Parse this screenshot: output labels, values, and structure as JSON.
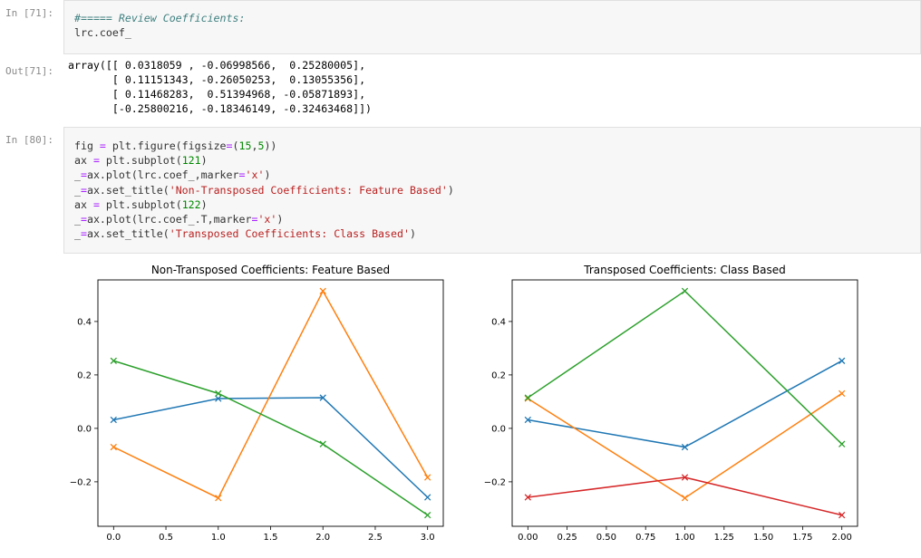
{
  "cells": [
    {
      "in_prompt": "In [71]:",
      "code_lines": [
        [
          {
            "t": "#===== Review Coefficients:",
            "c": "comment"
          }
        ],
        [
          {
            "t": "lrc.coef_",
            "c": ""
          }
        ]
      ],
      "out_prompt": "Out[71]:",
      "output_lines": [
        "array([[ 0.0318059 , -0.06998566,  0.25280005],",
        "       [ 0.11151343, -0.26050253,  0.13055356],",
        "       [ 0.11468283,  0.51394968, -0.05871893],",
        "       [-0.25800216, -0.18346149, -0.32463468]])"
      ]
    },
    {
      "in_prompt": "In [80]:",
      "code_lines": [
        [
          {
            "t": "fig ",
            "c": ""
          },
          {
            "t": "=",
            "c": "op"
          },
          {
            "t": " plt.figure(figsize",
            "c": ""
          },
          {
            "t": "=",
            "c": "op"
          },
          {
            "t": "(",
            "c": ""
          },
          {
            "t": "15",
            "c": "num"
          },
          {
            "t": ",",
            "c": ""
          },
          {
            "t": "5",
            "c": "num"
          },
          {
            "t": "))",
            "c": ""
          }
        ],
        [
          {
            "t": "ax ",
            "c": ""
          },
          {
            "t": "=",
            "c": "op"
          },
          {
            "t": " plt.subplot(",
            "c": ""
          },
          {
            "t": "121",
            "c": "num"
          },
          {
            "t": ")",
            "c": ""
          }
        ],
        [
          {
            "t": "_",
            "c": ""
          },
          {
            "t": "=",
            "c": "op"
          },
          {
            "t": "ax.plot(lrc.coef_,marker",
            "c": ""
          },
          {
            "t": "=",
            "c": "op"
          },
          {
            "t": "'x'",
            "c": "str"
          },
          {
            "t": ")",
            "c": ""
          }
        ],
        [
          {
            "t": "_",
            "c": ""
          },
          {
            "t": "=",
            "c": "op"
          },
          {
            "t": "ax.set_title(",
            "c": ""
          },
          {
            "t": "'Non-Transposed Coefficients: Feature Based'",
            "c": "str"
          },
          {
            "t": ")",
            "c": ""
          }
        ],
        [
          {
            "t": "ax ",
            "c": ""
          },
          {
            "t": "=",
            "c": "op"
          },
          {
            "t": " plt.subplot(",
            "c": ""
          },
          {
            "t": "122",
            "c": "num"
          },
          {
            "t": ")",
            "c": ""
          }
        ],
        [
          {
            "t": "_",
            "c": ""
          },
          {
            "t": "=",
            "c": "op"
          },
          {
            "t": "ax.plot(lrc.coef_.T,marker",
            "c": ""
          },
          {
            "t": "=",
            "c": "op"
          },
          {
            "t": "'x'",
            "c": "str"
          },
          {
            "t": ")",
            "c": ""
          }
        ],
        [
          {
            "t": "_",
            "c": ""
          },
          {
            "t": "=",
            "c": "op"
          },
          {
            "t": "ax.set_title(",
            "c": ""
          },
          {
            "t": "'Transposed Coefficients: Class Based'",
            "c": "str"
          },
          {
            "t": ")",
            "c": ""
          }
        ]
      ]
    }
  ],
  "colors": [
    "#1f77b4",
    "#ff7f0e",
    "#2ca02c",
    "#d62728"
  ],
  "chart_data": [
    {
      "type": "line",
      "title": "Non-Transposed Coefficients: Feature Based",
      "x": [
        0,
        1,
        2,
        3
      ],
      "series": [
        {
          "values": [
            0.0318059,
            0.11151343,
            0.11468283,
            -0.25800216
          ]
        },
        {
          "values": [
            -0.06998566,
            -0.26050253,
            0.51394968,
            -0.18346149
          ]
        },
        {
          "values": [
            0.25280005,
            0.13055356,
            -0.05871893,
            -0.32463468
          ]
        }
      ],
      "xlim": [
        -0.15,
        3.15
      ],
      "ylim": [
        -0.3665,
        0.5556
      ],
      "xticks": [
        0.0,
        0.5,
        1.0,
        1.5,
        2.0,
        2.5,
        3.0
      ],
      "xtick_labels": [
        "0.0",
        "0.5",
        "1.0",
        "1.5",
        "2.0",
        "2.5",
        "3.0"
      ],
      "yticks": [
        -0.2,
        0.0,
        0.2,
        0.4
      ],
      "ytick_labels": [
        "−0.2",
        "0.0",
        "0.2",
        "0.4"
      ],
      "marker": "x",
      "grid": false
    },
    {
      "type": "line",
      "title": "Transposed Coefficients: Class Based",
      "x": [
        0,
        1,
        2
      ],
      "series": [
        {
          "values": [
            0.0318059,
            -0.06998566,
            0.25280005
          ]
        },
        {
          "values": [
            0.11151343,
            -0.26050253,
            0.13055356
          ]
        },
        {
          "values": [
            0.11468283,
            0.51394968,
            -0.05871893
          ]
        },
        {
          "values": [
            -0.25800216,
            -0.18346149,
            -0.32463468
          ]
        }
      ],
      "xlim": [
        -0.1,
        2.1
      ],
      "ylim": [
        -0.3665,
        0.5556
      ],
      "xticks": [
        0.0,
        0.25,
        0.5,
        0.75,
        1.0,
        1.25,
        1.5,
        1.75,
        2.0
      ],
      "xtick_labels": [
        "0.00",
        "0.25",
        "0.50",
        "0.75",
        "1.00",
        "1.25",
        "1.50",
        "1.75",
        "2.00"
      ],
      "yticks": [
        -0.2,
        0.0,
        0.2,
        0.4
      ],
      "ytick_labels": [
        "−0.2",
        "0.0",
        "0.2",
        "0.4"
      ],
      "marker": "x",
      "grid": false
    }
  ]
}
